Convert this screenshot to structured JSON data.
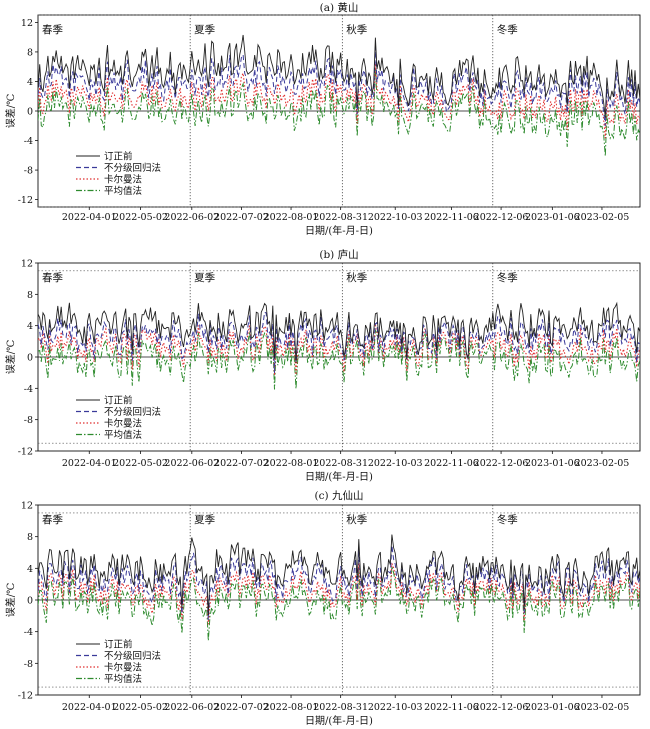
{
  "chart_data": [
    {
      "type": "line",
      "title": "(a) 黄山",
      "xlabel": "日期/(年-月-日)",
      "ylabel": "误差/℃",
      "ylim": [
        -13,
        13
      ],
      "yticks": [
        12,
        8,
        4,
        0,
        -4,
        -8,
        -12
      ],
      "xrange": [
        "2022-03-01",
        "2023-02-28"
      ],
      "xtick_labels": [
        "2022-04-01",
        "2022-05-02",
        "2022-06-02",
        "2022-07-02",
        "2022-08-01",
        "2022-08-31",
        "2022-10-03",
        "2022-11-06",
        "2022-12-06",
        "2023-01-06",
        "2023-02-05"
      ],
      "seasons": [
        {
          "label": "春季",
          "start": "2022-03-01"
        },
        {
          "label": "夏季",
          "start": "2022-06-01"
        },
        {
          "label": "秋季",
          "start": "2022-09-01"
        },
        {
          "label": "冬季",
          "start": "2022-12-01"
        }
      ],
      "reference_lines": [
        13,
        -13
      ],
      "legend_position": "lower-left",
      "series_shape": {
        "订正前": {
          "spring": 5.5,
          "summer": 6.5,
          "autumn": 4.5,
          "winter": 4.8,
          "amp": 2.8
        },
        "不分级回归法": {
          "spring": 3.8,
          "summer": 4.5,
          "autumn": 3.2,
          "winter": 3.2,
          "amp": 2.5
        },
        "卡尔曼法": {
          "spring": 1.8,
          "summer": 2.3,
          "autumn": 1.5,
          "winter": 1.0,
          "amp": 2.3
        },
        "平均值法": {
          "spring": 0.2,
          "summer": 0.5,
          "autumn": 0.2,
          "winter": -0.8,
          "amp": 2.6
        }
      },
      "series": [
        {
          "name": "订正前",
          "color": "#222222",
          "dash": "solid"
        },
        {
          "name": "不分级回归法",
          "color": "#3a3a9a",
          "dash": "dash"
        },
        {
          "name": "卡尔曼法",
          "color": "#e03030",
          "dash": "dot"
        },
        {
          "name": "平均值法",
          "color": "#2e8b2e",
          "dash": "dashdot"
        }
      ]
    },
    {
      "type": "line",
      "title": "(b) 庐山",
      "xlabel": "日期/(年-月-日)",
      "ylabel": "误差/℃",
      "ylim": [
        -12,
        12
      ],
      "yticks": [
        12,
        8,
        4,
        0,
        -4,
        -8,
        -12
      ],
      "xrange": [
        "2022-03-01",
        "2023-02-28"
      ],
      "xtick_labels": [
        "2022-04-01",
        "2022-05-02",
        "2022-06-02",
        "2022-07-02",
        "2022-08-01",
        "2022-08-31",
        "2022-10-03",
        "2022-11-06",
        "2022-12-06",
        "2023-01-06",
        "2023-02-05"
      ],
      "seasons": [
        {
          "label": "春季",
          "start": "2022-03-01"
        },
        {
          "label": "夏季",
          "start": "2022-06-01"
        },
        {
          "label": "秋季",
          "start": "2022-09-01"
        },
        {
          "label": "冬季",
          "start": "2022-12-01"
        }
      ],
      "reference_lines": [
        11,
        -11
      ],
      "legend_position": "lower-left",
      "series_shape": {
        "订正前": {
          "spring": 3.8,
          "summer": 4.2,
          "autumn": 3.2,
          "winter": 4.0,
          "amp": 2.5
        },
        "不分级回归法": {
          "spring": 2.3,
          "summer": 2.8,
          "autumn": 2.2,
          "winter": 2.6,
          "amp": 2.3
        },
        "卡尔曼法": {
          "spring": 1.2,
          "summer": 1.5,
          "autumn": 1.3,
          "winter": 1.0,
          "amp": 2.2
        },
        "平均值法": {
          "spring": -0.5,
          "summer": 0.3,
          "autumn": 0.4,
          "winter": -0.5,
          "amp": 2.5
        }
      },
      "series": [
        {
          "name": "订正前",
          "color": "#222222",
          "dash": "solid"
        },
        {
          "name": "不分级回归法",
          "color": "#3a3a9a",
          "dash": "dash"
        },
        {
          "name": "卡尔曼法",
          "color": "#e03030",
          "dash": "dot"
        },
        {
          "name": "平均值法",
          "color": "#2e8b2e",
          "dash": "dashdot"
        }
      ]
    },
    {
      "type": "line",
      "title": "(c) 九仙山",
      "xlabel": "日期/(年-月-日)",
      "ylabel": "误差/℃",
      "ylim": [
        -12,
        12
      ],
      "yticks": [
        12,
        8,
        4,
        0,
        -4,
        -8,
        -12
      ],
      "xrange": [
        "2022-03-01",
        "2023-02-28"
      ],
      "xtick_labels": [
        "2022-04-01",
        "2022-05-02",
        "2022-06-02",
        "2022-07-02",
        "2022-08-01",
        "2022-08-31",
        "2022-10-03",
        "2022-11-06",
        "2022-12-06",
        "2023-01-06",
        "2023-02-05"
      ],
      "seasons": [
        {
          "label": "春季",
          "start": "2022-03-01"
        },
        {
          "label": "夏季",
          "start": "2022-06-01"
        },
        {
          "label": "秋季",
          "start": "2022-09-01"
        },
        {
          "label": "冬季",
          "start": "2022-12-01"
        }
      ],
      "reference_lines": [
        11,
        -11
      ],
      "legend_position": "lower-left",
      "series_shape": {
        "订正前": {
          "spring": 4.0,
          "summer": 4.5,
          "autumn": 3.2,
          "winter": 3.2,
          "amp": 2.5
        },
        "不分级回归法": {
          "spring": 2.6,
          "summer": 3.0,
          "autumn": 2.2,
          "winter": 2.2,
          "amp": 2.3
        },
        "卡尔曼法": {
          "spring": 1.2,
          "summer": 1.5,
          "autumn": 1.0,
          "winter": 0.7,
          "amp": 2.0
        },
        "平均值法": {
          "spring": 0.0,
          "summer": 0.2,
          "autumn": 0.0,
          "winter": -0.3,
          "amp": 2.3
        }
      },
      "series": [
        {
          "name": "订正前",
          "color": "#222222",
          "dash": "solid"
        },
        {
          "name": "不分级回归法",
          "color": "#3a3a9a",
          "dash": "dash"
        },
        {
          "name": "卡尔曼法",
          "color": "#e03030",
          "dash": "dot"
        },
        {
          "name": "平均值法",
          "color": "#2e8b2e",
          "dash": "dashdot"
        }
      ]
    }
  ]
}
